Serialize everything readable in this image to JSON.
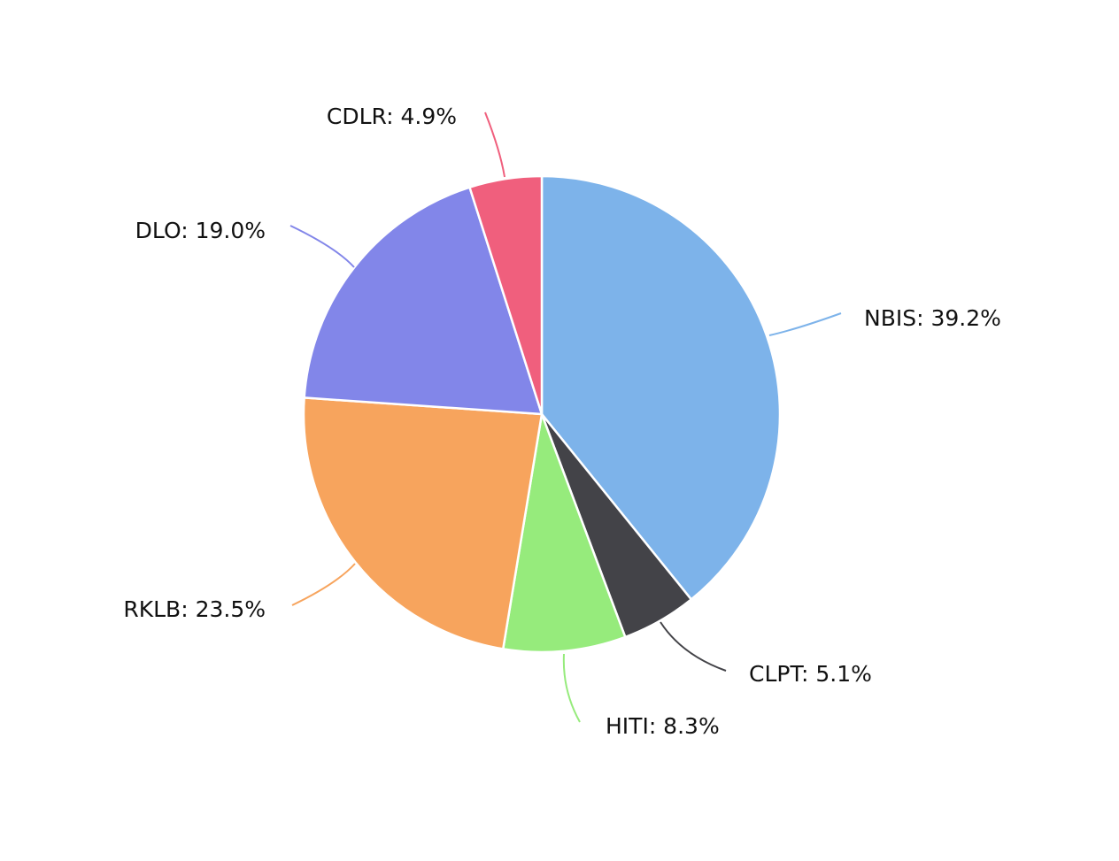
{
  "chart_data": {
    "type": "pie",
    "title": "",
    "legend": "none",
    "slices": [
      {
        "name": "NBIS",
        "value": 39.2,
        "label": "NBIS: 39.2%",
        "color": "#7db3ea"
      },
      {
        "name": "CLPT",
        "value": 5.1,
        "label": "CLPT: 5.1%",
        "color": "#434348"
      },
      {
        "name": "HITI",
        "value": 8.3,
        "label": "HITI: 8.3%",
        "color": "#96eb7c"
      },
      {
        "name": "RKLB",
        "value": 23.5,
        "label": "RKLB: 23.5%",
        "color": "#f7a45d"
      },
      {
        "name": "DLO",
        "value": 19.0,
        "label": "DLO: 19.0%",
        "color": "#8286e9"
      },
      {
        "name": "CDLR",
        "value": 4.9,
        "label": "CDLR: 4.9%",
        "color": "#f05f7d"
      }
    ]
  }
}
